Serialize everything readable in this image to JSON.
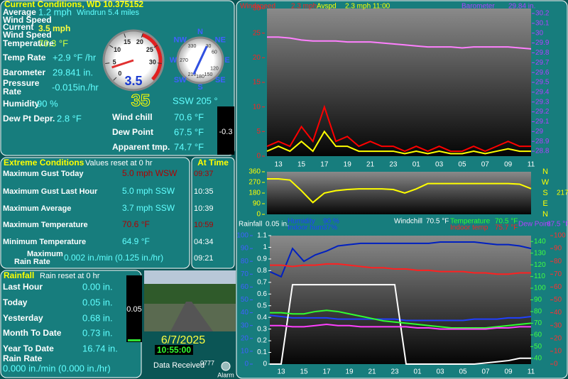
{
  "current": {
    "title": "Current Conditions, WD 10.375152",
    "rows": [
      {
        "label": [
          "Average",
          "Wind Speed"
        ],
        "value": "1.2 mph"
      },
      {
        "label": [
          "Current",
          "Wind Speed"
        ],
        "value": "3.5 mph"
      },
      {
        "label": [
          "Temperature"
        ],
        "value": "70.3 °F"
      },
      {
        "label": [
          "Temp Rate"
        ],
        "value": "+2.9 °F /hr"
      },
      {
        "label": [
          "Barometer"
        ],
        "value": "29.841 in."
      },
      {
        "label": [
          "Pressure",
          "Rate"
        ],
        "value": "-0.015in./hr"
      },
      {
        "label": [
          "Humidity"
        ],
        "value": "90 %"
      },
      {
        "label": [
          "Dew Pt Depr."
        ],
        "value": "2.8 °F"
      }
    ],
    "windrun": "Windrun 5.4 miles",
    "gauge": {
      "value": 3.5,
      "lim": [
        0,
        35
      ],
      "ticks": [
        0,
        5,
        10,
        15,
        20,
        25,
        30
      ]
    },
    "compass": {
      "direction": 205,
      "points": [
        "N",
        "NE",
        "E",
        "SE",
        "S",
        "SW",
        "W",
        "NW"
      ],
      "degrees": [
        330,
        30,
        60,
        270,
        120,
        150,
        180,
        210
      ]
    },
    "digital": "35",
    "direction_text": "SSW 205 °",
    "right_rows": [
      {
        "label": "Wind chill",
        "value": "70.6 °F"
      },
      {
        "label": "Dew Point",
        "value": "67.5 °F"
      },
      {
        "label": "Apparent tmp.",
        "value": "74.7 °F"
      }
    ],
    "rate_box": "-0.3"
  },
  "extremes": {
    "title": "Extreme Conditions",
    "note": "Values reset at 0 hr",
    "time_title": "At Time",
    "rows": [
      {
        "label": [
          "Maximum Gust Today"
        ],
        "value": "5.0 mph WSW",
        "time": "09:37"
      },
      {
        "label": [
          "Maximum Gust Last Hour"
        ],
        "value": "5.0 mph SSW",
        "time": "10:35"
      },
      {
        "label": [
          "Maximum Average"
        ],
        "value": "3.7 mph SSW",
        "time": "10:39"
      },
      {
        "label": [
          "Maximum Temperature"
        ],
        "value": "70.6 °F",
        "time": "10:59"
      },
      {
        "label": [
          "Minimum Temperature"
        ],
        "value": "64.9 °F",
        "time": "04:34"
      },
      {
        "label": [
          "Maximum",
          "Rain Rate"
        ],
        "value": "0.002 in./min (0.125 in./hr)",
        "time": "09:21"
      }
    ]
  },
  "rainfall": {
    "title": "Rainfall",
    "note": "Rain reset at 0 hr",
    "rows": [
      {
        "label": "Last Hour",
        "value": "0.00 in."
      },
      {
        "label": "Today",
        "value": "0.05 in."
      },
      {
        "label": "Yesterday",
        "value": "0.68 in."
      },
      {
        "label": "Month To Date",
        "value": "0.73 in."
      },
      {
        "label": "Year To Date",
        "value": "16.74 in."
      }
    ],
    "rate_label": "Rain Rate",
    "rate_value": "0.000 in./min (0.000 in./hr)",
    "bar": {
      "value": 0.05,
      "lim": [
        0,
        1.5
      ]
    }
  },
  "webcam": {
    "date": "6/7/2025",
    "time": "10:55:00",
    "status": "Data Received",
    "count": "0777",
    "alarm": "Alarm"
  },
  "graphs": [
    {
      "legend": [
        "Windspeed",
        "2.3 mph",
        "Avspd",
        "2.3 mph 11:00",
        "Barometer",
        "29.84 in."
      ],
      "axes": [
        {
          "lim": [
            0,
            30
          ],
          "ticks": [
            0,
            5,
            10,
            15,
            20,
            25,
            30
          ],
          "color": "#ff2020"
        },
        {
          "lim": [
            28.75,
            30.25
          ],
          "ticks": [
            28.8,
            28.9,
            29,
            29.1,
            29.2,
            29.3,
            29.4,
            29.5,
            29.6,
            29.7,
            29.8,
            29.9,
            30,
            30.1,
            30.2
          ],
          "color": "#b040ff"
        }
      ],
      "series": [
        {
          "color": "#ff0000",
          "axis": 0,
          "values": [
            2,
            3,
            2,
            6,
            3,
            10,
            3,
            4,
            2,
            3,
            2,
            2,
            1,
            2,
            1,
            2,
            1,
            1,
            2,
            1,
            2,
            3,
            2,
            2
          ]
        },
        {
          "color": "#ffff00",
          "axis": 0,
          "values": [
            1,
            2,
            1,
            3,
            1,
            5,
            2,
            2,
            1,
            1,
            1,
            1,
            0.5,
            1,
            0.5,
            1,
            0.5,
            0.5,
            1,
            0.5,
            1,
            1.5,
            1,
            1
          ]
        },
        {
          "color": "#ff80ff",
          "axis": 1,
          "values": [
            29.96,
            29.96,
            29.95,
            29.93,
            29.92,
            29.92,
            29.92,
            29.91,
            29.91,
            29.91,
            29.9,
            29.89,
            29.88,
            29.87,
            29.86,
            29.86,
            29.86,
            29.85,
            29.86,
            29.86,
            29.86,
            29.86,
            29.85,
            29.84
          ]
        }
      ],
      "xlabels": [
        "13",
        "15",
        "17",
        "19",
        "21",
        "23",
        "01",
        "03",
        "05",
        "07",
        "09",
        "11"
      ]
    },
    {
      "axes": [
        {
          "lim": [
            0,
            360
          ],
          "ticks": [
            0,
            90,
            180,
            270,
            360
          ],
          "color": "#ffff00"
        }
      ],
      "series": [
        {
          "color": "#ffff00",
          "axis": 0,
          "values": [
            300,
            300,
            290,
            200,
            100,
            180,
            200,
            210,
            215,
            215,
            215,
            210,
            180,
            215,
            260,
            260,
            260,
            260,
            260,
            260,
            260,
            260,
            255,
            217
          ]
        }
      ],
      "compass_labels": [
        "N",
        "W",
        "S",
        "E",
        "N"
      ],
      "current": "217"
    },
    {
      "legend": [
        "Rainfall",
        "0.05 in.",
        "Humidity",
        "90 %",
        "Indoor hum",
        "37%",
        "Windchill",
        "70.5 °F",
        "Temperature",
        "70.5 °F",
        "Indoor temp",
        "75.7 °F",
        "Dew Point",
        "67.5 °F"
      ],
      "axes": [
        {
          "lim": [
            0,
            100
          ],
          "ticks": [
            0,
            10,
            20,
            30,
            40,
            50,
            60,
            70,
            80,
            90,
            100
          ],
          "color": "#4060ff"
        },
        {
          "lim": [
            0,
            1.1
          ],
          "ticks": [
            0,
            0.1,
            0.2,
            0.3,
            0.4,
            0.5,
            0.6,
            0.7,
            0.8,
            0.9,
            1,
            1.1
          ],
          "color": "#ffffff"
        },
        {
          "lim": [
            35,
            145
          ],
          "ticks": [
            40,
            50,
            60,
            70,
            80,
            90,
            100,
            110,
            120,
            130,
            140
          ],
          "color": "#40ff40"
        },
        {
          "lim": [
            0,
            100
          ],
          "ticks": [
            0,
            10,
            20,
            30,
            40,
            50,
            60,
            70,
            80,
            90,
            100
          ],
          "color": "#ff3030"
        }
      ],
      "series": [
        {
          "color": "#0020c0",
          "axis": 0,
          "values": [
            72,
            68,
            90,
            80,
            85,
            88,
            92,
            93,
            94,
            94,
            94,
            94,
            94,
            94,
            94,
            95,
            95,
            95,
            95,
            94,
            93,
            93,
            92,
            90
          ]
        },
        {
          "color": "#2040ff",
          "axis": 0,
          "values": [
            38,
            37,
            36,
            36,
            36,
            36,
            35,
            35,
            35,
            35,
            35,
            35,
            34,
            34,
            34,
            34,
            34,
            34,
            35,
            35,
            35,
            36,
            36,
            37
          ]
        },
        {
          "color": "#ffffff",
          "axis": 1,
          "values": [
            0,
            0,
            0.68,
            0.68,
            0.68,
            0.68,
            0.68,
            0.68,
            0.68,
            0.68,
            0.68,
            0.68,
            0,
            0,
            0,
            0,
            0,
            0,
            0,
            0.01,
            0.02,
            0.03,
            0.05,
            0.05
          ]
        },
        {
          "color": "#30ff30",
          "axis": 2,
          "values": [
            79,
            79,
            78,
            78,
            80,
            81,
            80,
            78,
            76,
            74,
            72,
            71,
            70,
            69,
            68,
            67,
            66,
            66,
            66,
            66,
            67,
            68,
            69,
            70
          ]
        },
        {
          "color": "#ff40ff",
          "axis": 2,
          "values": [
            68,
            68,
            67,
            67,
            68,
            69,
            68,
            68,
            67,
            67,
            67,
            67,
            67,
            66,
            66,
            65,
            65,
            65,
            65,
            65,
            66,
            66,
            67,
            67
          ]
        },
        {
          "color": "#ff2020",
          "axis": 3,
          "values": [
            77,
            77,
            76,
            77,
            77,
            78,
            78,
            77,
            76,
            75,
            75,
            74,
            74,
            73,
            73,
            72,
            72,
            72,
            71,
            71,
            70,
            70,
            71,
            71
          ]
        }
      ],
      "xlabels": [
        "13",
        "15",
        "17",
        "19",
        "21",
        "23",
        "01",
        "03",
        "05",
        "07",
        "09",
        "11"
      ]
    }
  ]
}
